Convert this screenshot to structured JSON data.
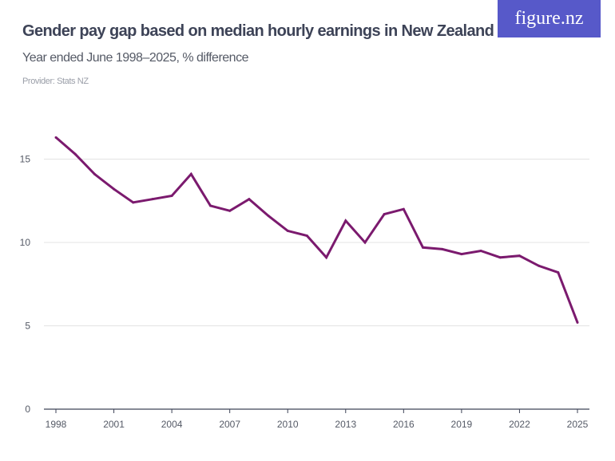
{
  "header": {
    "title": "Gender pay gap based on median hourly earnings in New Zealand",
    "subtitle": "Year ended June 1998–2025, % difference",
    "provider": "Provider: Stats NZ",
    "logo": "figure.nz"
  },
  "chart_data": {
    "type": "line",
    "title": "Gender pay gap based on median hourly earnings in New Zealand",
    "xlabel": "",
    "ylabel": "% difference",
    "ylim": [
      0,
      17
    ],
    "yticks": [
      0,
      5,
      10,
      15
    ],
    "xticks": [
      1998,
      2001,
      2004,
      2007,
      2010,
      2013,
      2016,
      2019,
      2022,
      2025
    ],
    "grid": true,
    "line_color": "#7b1a6e",
    "series": [
      {
        "name": "Gender pay gap",
        "x": [
          1998,
          1999,
          2000,
          2001,
          2002,
          2003,
          2004,
          2005,
          2006,
          2007,
          2008,
          2009,
          2010,
          2011,
          2012,
          2013,
          2014,
          2015,
          2016,
          2017,
          2018,
          2019,
          2020,
          2021,
          2022,
          2023,
          2024,
          2025
        ],
        "values": [
          16.3,
          15.3,
          14.1,
          13.2,
          12.4,
          12.6,
          12.8,
          14.1,
          12.2,
          11.9,
          12.6,
          11.6,
          10.7,
          10.4,
          9.1,
          11.3,
          10.0,
          11.7,
          12.0,
          9.7,
          9.6,
          9.3,
          9.5,
          9.1,
          9.2,
          8.6,
          8.2,
          5.2
        ]
      }
    ]
  }
}
